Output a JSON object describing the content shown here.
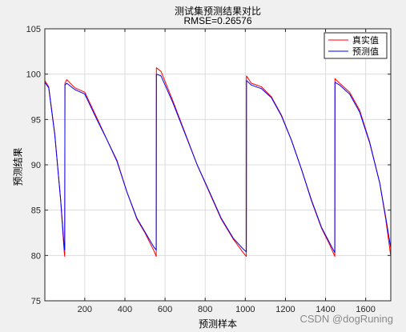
{
  "chart_data": {
    "type": "line",
    "title": "测试集预测结果对比",
    "subtitle": "RMSE=0.26576",
    "xlabel": "预测样本",
    "ylabel": "预测结果",
    "xlim": [
      1,
      1725
    ],
    "ylim": [
      75,
      105
    ],
    "xticks": [
      "200",
      "400",
      "600",
      "800",
      "1000",
      "1200",
      "1400",
      "1600"
    ],
    "yticks": [
      "75",
      "80",
      "85",
      "90",
      "95",
      "100",
      "105"
    ],
    "grid": true,
    "legend_position": "top-right",
    "series": [
      {
        "name": "真实值",
        "color": "#ff0000",
        "x": [
          1,
          20,
          50,
          80,
          97,
          100,
          101,
          110,
          150,
          200,
          260,
          310,
          360,
          410,
          460,
          500,
          545,
          556,
          557,
          580,
          640,
          700,
          760,
          820,
          880,
          940,
          990,
          1005,
          1006,
          1030,
          1080,
          1130,
          1180,
          1230,
          1280,
          1330,
          1380,
          1420,
          1446,
          1447,
          1470,
          1520,
          1570,
          1620,
          1670,
          1700,
          1725
        ],
        "values": [
          99.3,
          98.6,
          93.5,
          86.0,
          80.5,
          79.9,
          99.0,
          99.4,
          98.5,
          98.0,
          95.2,
          92.8,
          90.5,
          87.0,
          84.0,
          82.5,
          80.5,
          79.9,
          100.7,
          100.3,
          97.0,
          93.5,
          90.0,
          87.0,
          84.0,
          81.8,
          80.3,
          79.9,
          99.8,
          99.0,
          98.6,
          97.5,
          95.5,
          92.7,
          89.5,
          86.0,
          83.0,
          81.2,
          79.9,
          99.5,
          99.0,
          98.0,
          96.0,
          92.5,
          88.0,
          84.0,
          79.9
        ]
      },
      {
        "name": "预测值",
        "color": "#0000ff",
        "x": [
          1,
          20,
          50,
          80,
          97,
          100,
          101,
          110,
          150,
          200,
          260,
          310,
          360,
          410,
          460,
          500,
          545,
          556,
          557,
          580,
          640,
          700,
          760,
          820,
          880,
          940,
          990,
          1005,
          1006,
          1030,
          1080,
          1130,
          1180,
          1230,
          1280,
          1330,
          1380,
          1420,
          1446,
          1447,
          1470,
          1520,
          1570,
          1620,
          1670,
          1700,
          1725
        ],
        "values": [
          99.1,
          98.5,
          93.4,
          86.1,
          81.0,
          80.6,
          98.8,
          99.0,
          98.3,
          97.8,
          95.0,
          92.8,
          90.4,
          87.0,
          84.1,
          82.6,
          80.9,
          80.6,
          100.0,
          99.8,
          96.8,
          93.4,
          90.0,
          87.1,
          84.1,
          81.9,
          80.7,
          80.4,
          99.3,
          98.8,
          98.4,
          97.4,
          95.4,
          92.7,
          89.5,
          86.1,
          83.1,
          81.4,
          80.3,
          99.1,
          98.8,
          97.8,
          95.8,
          92.4,
          88.0,
          84.2,
          80.8
        ]
      }
    ]
  },
  "watermark": "CSDN @dogRuning"
}
